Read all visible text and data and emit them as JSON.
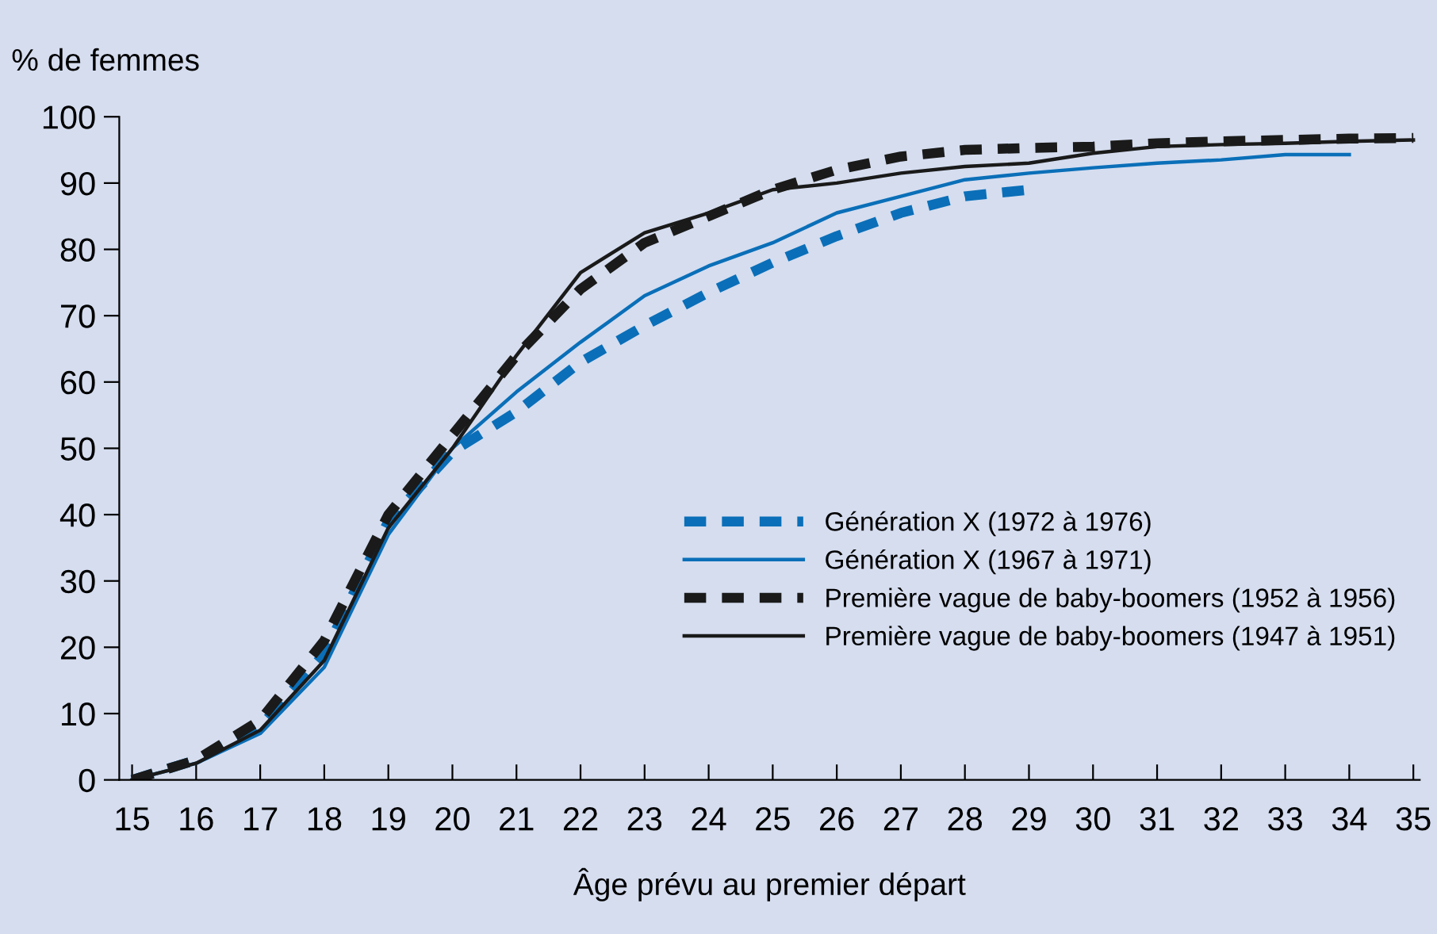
{
  "chart_data": {
    "type": "line",
    "ylabel": "% de femmes",
    "xlabel": "Âge prévu au premier départ",
    "x": [
      15,
      16,
      17,
      18,
      19,
      20,
      21,
      22,
      23,
      24,
      25,
      26,
      27,
      28,
      29,
      30,
      31,
      32,
      33,
      34,
      35
    ],
    "series": [
      {
        "name": "Génération X (1972 à 1976)",
        "color": "#0a6fb8",
        "line_style": "dashed",
        "x": [
          15,
          16,
          17,
          18,
          19,
          20,
          21,
          22,
          23,
          24,
          25,
          26,
          27,
          28,
          29
        ],
        "values": [
          0,
          3,
          8,
          19,
          39,
          49.5,
          55.5,
          63,
          68.5,
          73.5,
          78,
          82,
          85.5,
          88,
          89
        ]
      },
      {
        "name": "Génération X (1967 à 1971)",
        "color": "#0a6fb8",
        "line_style": "solid",
        "x": [
          15,
          16,
          17,
          18,
          19,
          20,
          21,
          22,
          23,
          24,
          25,
          26,
          27,
          28,
          29,
          30,
          31,
          32,
          33,
          34
        ],
        "values": [
          0,
          2.5,
          7,
          17,
          37,
          50,
          58.5,
          66,
          73,
          77.5,
          81,
          85.5,
          88,
          90.5,
          91.5,
          92.3,
          93,
          93.5,
          94.3,
          94.3
        ]
      },
      {
        "name": "Première vague de baby-boomers (1952 à 1956)",
        "color": "#1a1a1a",
        "line_style": "dashed",
        "values": [
          0,
          3,
          9,
          21,
          40,
          52,
          64,
          74,
          81,
          85,
          89,
          92,
          94,
          95,
          95.3,
          95.5,
          96,
          96.3,
          96.5,
          96.7,
          96.8
        ]
      },
      {
        "name": "Première vague de baby-boomers (1947 à 1951)",
        "color": "#1a1a1a",
        "line_style": "solid",
        "values": [
          0,
          2.5,
          7.5,
          18,
          38,
          50,
          64,
          76.5,
          82.5,
          85.5,
          89,
          90,
          91.5,
          92.5,
          93,
          94.5,
          95.5,
          95.8,
          96,
          96.3,
          96.5
        ]
      }
    ],
    "xlim": [
      14.8,
      35.1
    ],
    "ylim": [
      0,
      100
    ],
    "xticks": [
      15,
      16,
      17,
      18,
      19,
      20,
      21,
      22,
      23,
      24,
      25,
      26,
      27,
      28,
      29,
      30,
      31,
      32,
      33,
      34,
      35
    ],
    "yticks": [
      0,
      10,
      20,
      30,
      40,
      50,
      60,
      70,
      80,
      90,
      100
    ],
    "grid": false,
    "legend": "right",
    "marker": "none"
  }
}
